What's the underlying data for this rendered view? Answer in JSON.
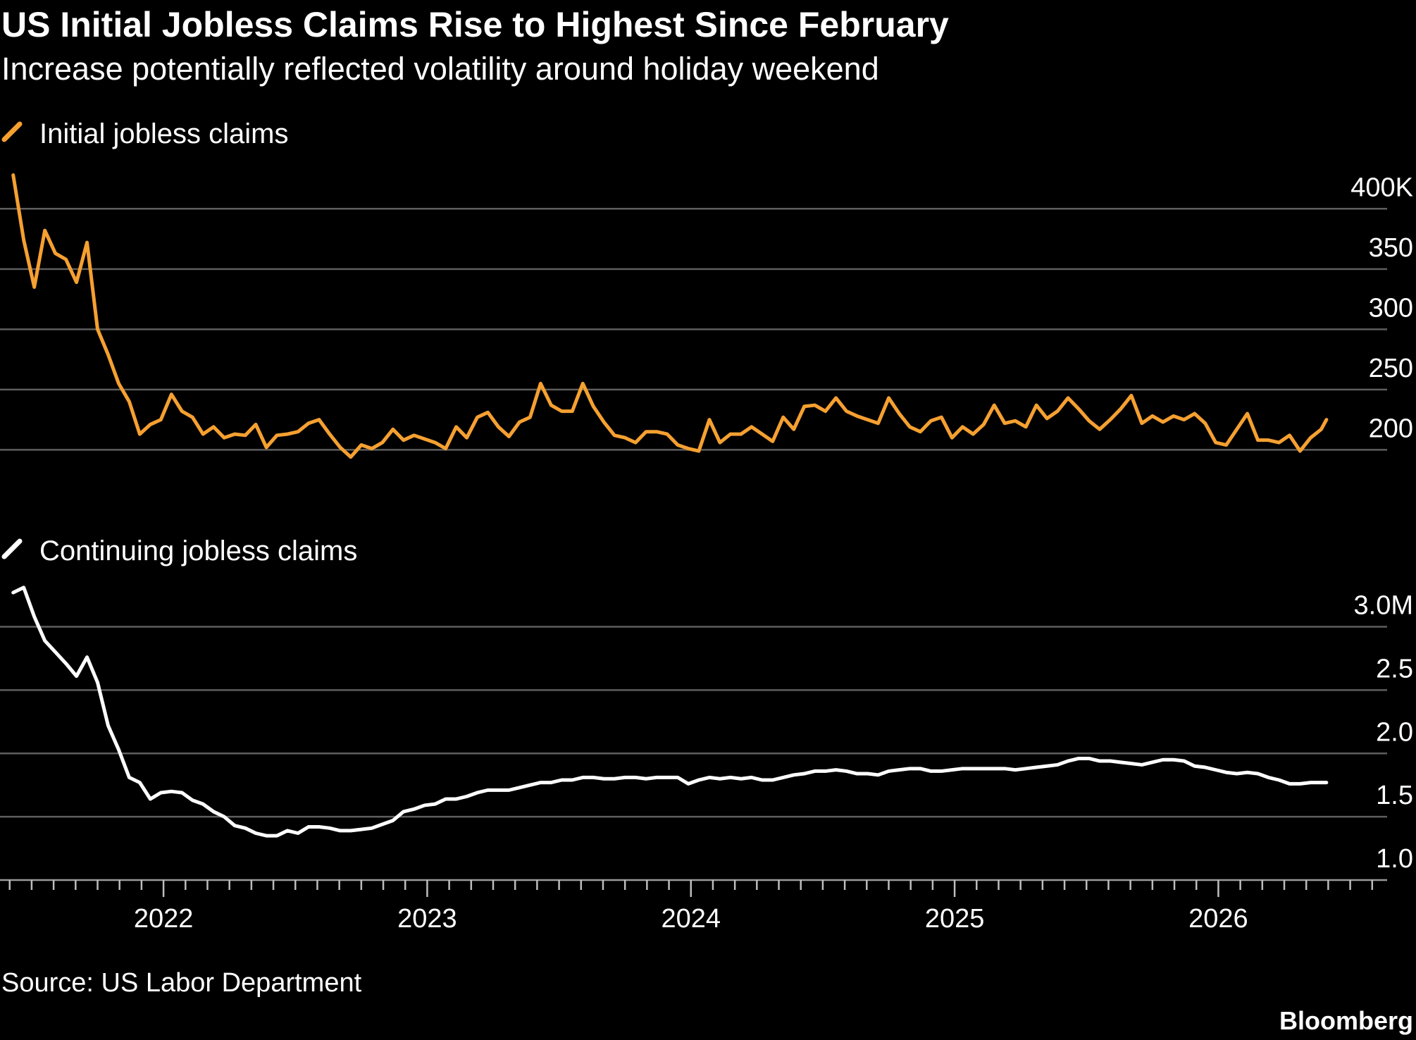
{
  "title": "US Initial Jobless Claims Rise to Highest Since February",
  "subtitle": "Increase potentially reflected volatility around holiday weekend",
  "source": "Source: US Labor Department",
  "brand": "Bloomberg",
  "chart_data": [
    {
      "type": "line",
      "x": [
        2021.43,
        2021.47,
        2021.51,
        2021.55,
        2021.59,
        2021.63,
        2021.67,
        2021.71,
        2021.75,
        2021.79,
        2021.83,
        2021.87,
        2021.91,
        2021.95,
        2021.99,
        2022.03,
        2022.07,
        2022.11,
        2022.15,
        2022.19,
        2022.23,
        2022.27,
        2022.31,
        2022.35,
        2022.39,
        2022.43,
        2022.47,
        2022.51,
        2022.55,
        2022.59,
        2022.63,
        2022.67,
        2022.71,
        2022.75,
        2022.79,
        2022.83,
        2022.87,
        2022.91,
        2022.95,
        2022.99,
        2023.03,
        2023.07,
        2023.11,
        2023.15,
        2023.19,
        2023.23,
        2023.27,
        2023.31,
        2023.35,
        2023.39,
        2023.43,
        2023.47,
        2023.51,
        2023.55,
        2023.59,
        2023.63,
        2023.67,
        2023.71,
        2023.75,
        2023.79,
        2023.83,
        2023.87,
        2023.91,
        2023.95,
        2023.99,
        2024.03,
        2024.07,
        2024.11,
        2024.15,
        2024.19,
        2024.23,
        2024.27,
        2024.31,
        2024.35,
        2024.39,
        2024.43,
        2024.47,
        2024.51,
        2024.55,
        2024.59,
        2024.63,
        2024.67,
        2024.71,
        2024.75,
        2024.79,
        2024.83,
        2024.87,
        2024.91,
        2024.95,
        2024.99,
        2025.03,
        2025.07,
        2025.11,
        2025.15,
        2025.19,
        2025.23,
        2025.27,
        2025.31,
        2025.35,
        2025.39,
        2025.43,
        2025.47,
        2025.51,
        2025.55,
        2025.59,
        2025.63,
        2025.67,
        2025.71,
        2025.75,
        2025.79,
        2025.83,
        2025.87,
        2025.91,
        2025.95,
        2025.99,
        2026.03,
        2026.07,
        2026.11,
        2026.15,
        2026.19,
        2026.23,
        2026.27,
        2026.31,
        2026.35,
        2026.39,
        2026.41
      ],
      "xlim": [
        2021.38,
        2026.64
      ],
      "series": [
        {
          "name": "Initial jobless claims",
          "color": "#f5a031",
          "values": [
            428,
            374,
            335,
            382,
            363,
            358,
            339,
            372,
            300,
            279,
            255,
            240,
            213,
            221,
            225,
            246,
            232,
            227,
            213,
            219,
            210,
            213,
            212,
            221,
            202,
            212,
            213,
            215,
            222,
            225,
            213,
            202,
            194,
            204,
            201,
            206,
            217,
            208,
            212,
            209,
            206,
            201,
            219,
            210,
            227,
            231,
            219,
            211,
            223,
            227,
            255,
            237,
            232,
            232,
            255,
            236,
            223,
            212,
            210,
            206,
            215,
            215,
            213,
            204,
            201,
            199,
            225,
            206,
            213,
            213,
            219,
            213,
            207,
            227,
            217,
            236,
            237,
            232,
            243,
            232,
            228,
            225,
            222,
            243,
            230,
            219,
            215,
            224,
            227,
            210,
            219,
            213,
            221,
            237,
            222,
            224,
            219,
            237,
            226,
            232,
            243,
            234,
            224,
            217,
            225,
            234,
            245,
            222,
            228,
            223,
            228,
            225,
            230,
            222,
            206,
            204,
            217,
            230,
            208,
            208,
            206,
            212,
            199,
            210,
            217,
            225
          ]
        }
      ],
      "ylim": [
        185,
        430
      ],
      "yticks": [
        200,
        250,
        300,
        350,
        {
          "value": 400,
          "label": "400K"
        }
      ],
      "grid": true
    },
    {
      "type": "line",
      "x": [
        2021.43,
        2021.47,
        2021.51,
        2021.55,
        2021.59,
        2021.63,
        2021.67,
        2021.71,
        2021.75,
        2021.79,
        2021.83,
        2021.87,
        2021.91,
        2021.95,
        2021.99,
        2022.03,
        2022.07,
        2022.11,
        2022.15,
        2022.19,
        2022.23,
        2022.27,
        2022.31,
        2022.35,
        2022.39,
        2022.43,
        2022.47,
        2022.51,
        2022.55,
        2022.59,
        2022.63,
        2022.67,
        2022.71,
        2022.75,
        2022.79,
        2022.83,
        2022.87,
        2022.91,
        2022.95,
        2022.99,
        2023.03,
        2023.07,
        2023.11,
        2023.15,
        2023.19,
        2023.23,
        2023.27,
        2023.31,
        2023.35,
        2023.39,
        2023.43,
        2023.47,
        2023.51,
        2023.55,
        2023.59,
        2023.63,
        2023.67,
        2023.71,
        2023.75,
        2023.79,
        2023.83,
        2023.87,
        2023.91,
        2023.95,
        2023.99,
        2024.03,
        2024.07,
        2024.11,
        2024.15,
        2024.19,
        2024.23,
        2024.27,
        2024.31,
        2024.35,
        2024.39,
        2024.43,
        2024.47,
        2024.51,
        2024.55,
        2024.59,
        2024.63,
        2024.67,
        2024.71,
        2024.75,
        2024.79,
        2024.83,
        2024.87,
        2024.91,
        2024.95,
        2024.99,
        2025.03,
        2025.07,
        2025.11,
        2025.15,
        2025.19,
        2025.23,
        2025.27,
        2025.31,
        2025.35,
        2025.39,
        2025.43,
        2025.47,
        2025.51,
        2025.55,
        2025.59,
        2025.63,
        2025.67,
        2025.71,
        2025.75,
        2025.79,
        2025.83,
        2025.87,
        2025.91,
        2025.95,
        2025.99,
        2026.03,
        2026.07,
        2026.11,
        2026.15,
        2026.19,
        2026.23,
        2026.27,
        2026.31,
        2026.35,
        2026.39,
        2026.41
      ],
      "xlim": [
        2021.38,
        2026.64
      ],
      "xticks": [
        2022,
        2023,
        2024,
        2025,
        2026
      ],
      "series": [
        {
          "name": "Continuing jobless claims",
          "color": "#ffffff",
          "values": [
            3.27,
            3.31,
            3.08,
            2.89,
            2.8,
            2.71,
            2.61,
            2.76,
            2.56,
            2.22,
            2.03,
            1.81,
            1.77,
            1.64,
            1.69,
            1.7,
            1.69,
            1.63,
            1.6,
            1.54,
            1.5,
            1.43,
            1.41,
            1.37,
            1.35,
            1.35,
            1.39,
            1.37,
            1.42,
            1.42,
            1.41,
            1.39,
            1.39,
            1.4,
            1.41,
            1.44,
            1.47,
            1.54,
            1.56,
            1.59,
            1.6,
            1.64,
            1.64,
            1.66,
            1.69,
            1.71,
            1.71,
            1.71,
            1.73,
            1.75,
            1.77,
            1.77,
            1.79,
            1.79,
            1.81,
            1.81,
            1.8,
            1.8,
            1.81,
            1.81,
            1.8,
            1.81,
            1.81,
            1.81,
            1.76,
            1.79,
            1.81,
            1.8,
            1.81,
            1.8,
            1.81,
            1.79,
            1.79,
            1.81,
            1.83,
            1.84,
            1.86,
            1.86,
            1.87,
            1.86,
            1.84,
            1.84,
            1.83,
            1.86,
            1.87,
            1.88,
            1.88,
            1.86,
            1.86,
            1.87,
            1.88,
            1.88,
            1.88,
            1.88,
            1.88,
            1.87,
            1.88,
            1.89,
            1.9,
            1.91,
            1.94,
            1.96,
            1.96,
            1.94,
            1.94,
            1.93,
            1.92,
            1.91,
            1.93,
            1.95,
            1.95,
            1.94,
            1.9,
            1.89,
            1.87,
            1.85,
            1.84,
            1.85,
            1.84,
            1.81,
            1.79,
            1.76,
            1.76,
            1.77,
            1.77,
            1.77
          ]
        }
      ],
      "ylim": [
        1.0,
        3.32
      ],
      "yticks": [
        {
          "value": 1,
          "label": "1.0"
        },
        1.5,
        {
          "value": 2,
          "label": "2.0"
        },
        2.5,
        {
          "value": 3,
          "label": "3.0M"
        }
      ],
      "grid": true
    }
  ]
}
